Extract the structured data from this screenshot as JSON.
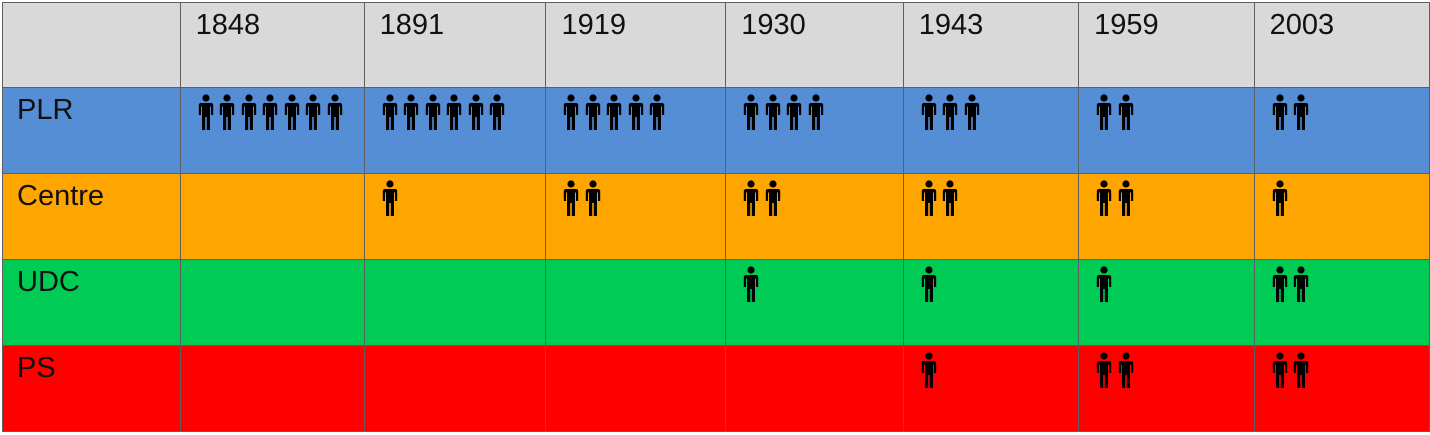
{
  "chart_data": {
    "type": "table",
    "columns": [
      "1848",
      "1891",
      "1919",
      "1930",
      "1943",
      "1959",
      "2003"
    ],
    "rows": [
      {
        "label": "PLR",
        "color": "#558ed5",
        "values": [
          7,
          6,
          5,
          4,
          3,
          2,
          2
        ]
      },
      {
        "label": "Centre",
        "color": "#ffa500",
        "values": [
          0,
          1,
          2,
          2,
          2,
          2,
          1
        ]
      },
      {
        "label": "UDC",
        "color": "#00cc55",
        "values": [
          0,
          0,
          0,
          1,
          1,
          1,
          2
        ]
      },
      {
        "label": "PS",
        "color": "#ff0000",
        "values": [
          0,
          0,
          0,
          0,
          1,
          2,
          2
        ]
      }
    ],
    "header_color": "#d9d9d9",
    "icon": "person-icon"
  }
}
